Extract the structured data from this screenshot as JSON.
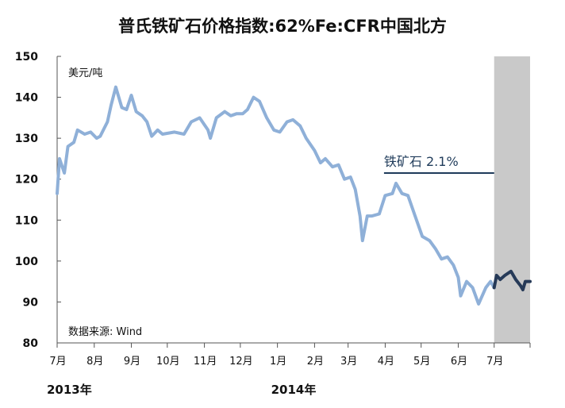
{
  "chart_data": {
    "type": "line",
    "title": "普氏铁矿石价格指数:62%Fe:CFR中国北方",
    "unit_label": "美元/吨",
    "source_note": "数据来源: Wind",
    "annotation": "铁矿石 2.1%",
    "ylim": [
      80,
      150
    ],
    "yticks": [
      "80",
      "90",
      "100",
      "110",
      "120",
      "130",
      "140",
      "150"
    ],
    "xlim": [
      "2013-07-01",
      "2014-07-31"
    ],
    "xtick_labels": [
      "7月",
      "8月",
      "9月",
      "10月",
      "11月",
      "12月",
      "1月",
      "2月",
      "3月",
      "4月",
      "5月",
      "6月",
      "7月"
    ],
    "year_labels": [
      "2013年",
      "2014年"
    ],
    "shaded_range": [
      "2014-07-01",
      "2014-07-31"
    ],
    "series": [
      {
        "color": "#8fb0d8",
        "points": [
          [
            "2013-07-01",
            116.5
          ],
          [
            "2013-07-03",
            125
          ],
          [
            "2013-07-07",
            121.5
          ],
          [
            "2013-07-10",
            128
          ],
          [
            "2013-07-15",
            129
          ],
          [
            "2013-07-18",
            132
          ],
          [
            "2013-07-24",
            131
          ],
          [
            "2013-07-29",
            131.5
          ],
          [
            "2013-08-03",
            130
          ],
          [
            "2013-08-06",
            130.5
          ],
          [
            "2013-08-12",
            134
          ],
          [
            "2013-08-15",
            138
          ],
          [
            "2013-08-19",
            142.5
          ],
          [
            "2013-08-24",
            137.5
          ],
          [
            "2013-08-28",
            137
          ],
          [
            "2013-09-01",
            140.5
          ],
          [
            "2013-09-05",
            136.5
          ],
          [
            "2013-09-10",
            135.5
          ],
          [
            "2013-09-14",
            134
          ],
          [
            "2013-09-18",
            130.5
          ],
          [
            "2013-09-23",
            132
          ],
          [
            "2013-09-27",
            131
          ],
          [
            "2013-10-07",
            131.5
          ],
          [
            "2013-10-15",
            131
          ],
          [
            "2013-10-21",
            134
          ],
          [
            "2013-10-28",
            135
          ],
          [
            "2013-11-04",
            132
          ],
          [
            "2013-11-06",
            130
          ],
          [
            "2013-11-11",
            135
          ],
          [
            "2013-11-18",
            136.5
          ],
          [
            "2013-11-23",
            135.5
          ],
          [
            "2013-11-28",
            136
          ],
          [
            "2013-12-03",
            136
          ],
          [
            "2013-12-07",
            137
          ],
          [
            "2013-12-12",
            140
          ],
          [
            "2013-12-17",
            139
          ],
          [
            "2013-12-23",
            135
          ],
          [
            "2013-12-29",
            132
          ],
          [
            "2014-01-03",
            131.5
          ],
          [
            "2014-01-09",
            134
          ],
          [
            "2014-01-14",
            134.5
          ],
          [
            "2014-01-20",
            133
          ],
          [
            "2014-01-25",
            130
          ],
          [
            "2014-02-01",
            127
          ],
          [
            "2014-02-06",
            124
          ],
          [
            "2014-02-10",
            125
          ],
          [
            "2014-02-16",
            123
          ],
          [
            "2014-02-21",
            123.5
          ],
          [
            "2014-02-26",
            120
          ],
          [
            "2014-03-03",
            120.5
          ],
          [
            "2014-03-07",
            117.5
          ],
          [
            "2014-03-11",
            111
          ],
          [
            "2014-03-13",
            105
          ],
          [
            "2014-03-17",
            111
          ],
          [
            "2014-03-21",
            111
          ],
          [
            "2014-03-27",
            111.5
          ],
          [
            "2014-04-01",
            116
          ],
          [
            "2014-04-07",
            116.5
          ],
          [
            "2014-04-10",
            119
          ],
          [
            "2014-04-15",
            116.5
          ],
          [
            "2014-04-20",
            116
          ],
          [
            "2014-04-26",
            111
          ],
          [
            "2014-05-02",
            106
          ],
          [
            "2014-05-08",
            105
          ],
          [
            "2014-05-13",
            103
          ],
          [
            "2014-05-18",
            100.5
          ],
          [
            "2014-05-23",
            101
          ],
          [
            "2014-05-28",
            99
          ],
          [
            "2014-06-01",
            96
          ],
          [
            "2014-06-03",
            91.5
          ],
          [
            "2014-06-08",
            95
          ],
          [
            "2014-06-13",
            93.5
          ],
          [
            "2014-06-18",
            89.5
          ],
          [
            "2014-06-24",
            93.5
          ],
          [
            "2014-06-28",
            95
          ],
          [
            "2014-07-01",
            93.5
          ]
        ]
      },
      {
        "color": "#263a58",
        "points": [
          [
            "2014-07-01",
            93.5
          ],
          [
            "2014-07-03",
            96.5
          ],
          [
            "2014-07-06",
            95.5
          ],
          [
            "2014-07-10",
            96.5
          ],
          [
            "2014-07-15",
            97.5
          ],
          [
            "2014-07-19",
            95.5
          ],
          [
            "2014-07-23",
            94
          ],
          [
            "2014-07-25",
            93
          ],
          [
            "2014-07-27",
            95
          ],
          [
            "2014-07-31",
            95
          ]
        ]
      }
    ]
  }
}
